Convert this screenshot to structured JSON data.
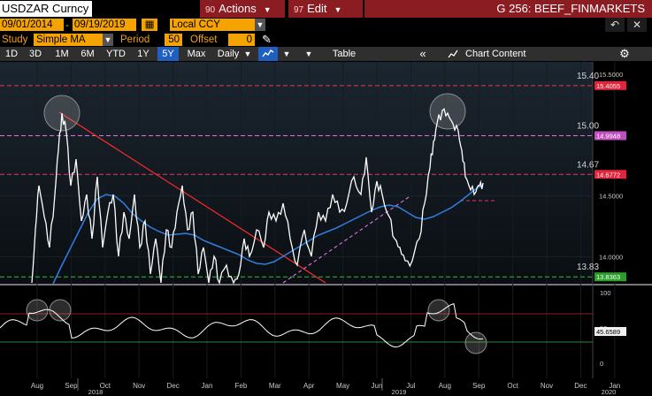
{
  "header": {
    "security": "USDZAR Curncy",
    "actions_num": "90",
    "actions_label": "Actions",
    "edit_num": "97",
    "edit_label": "Edit",
    "page_title": "G 256: BEEF_FINMARKETS"
  },
  "dates": {
    "start": "09/01/2014",
    "end": "09/19/2019",
    "currency": "Local CCY"
  },
  "study": {
    "label": "Study",
    "value": "Simple MA",
    "period_label": "Period",
    "period": "50",
    "offset_label": "Offset",
    "offset": "0"
  },
  "toolbar": {
    "ranges": [
      "1D",
      "3D",
      "1M",
      "6M",
      "YTD",
      "1Y",
      "5Y",
      "Max"
    ],
    "selected_range": "5Y",
    "frequency": "Daily",
    "table_label": "Table",
    "chart_content_label": "Chart Content"
  },
  "icons": [
    "pencil-icon",
    "undo-icon",
    "close-icon",
    "line-chart-icon",
    "chevron-down-icon",
    "collapse-icon",
    "chart-content-icon",
    "gear-icon"
  ],
  "colors": {
    "price_line": "#ffffff",
    "moving_average": "#2f7fe0",
    "trend_line": "#ff2b2b",
    "level_dashed": "#e23a5c",
    "magenta_dashed": "#e070e0",
    "green_dashed": "#3cb83c",
    "accent_orange": "#f4a300",
    "header_red": "#8a1c22"
  },
  "chart_data": {
    "type": "line",
    "series": [
      {
        "name": "USDZAR Curncy",
        "color": "#ffffff"
      },
      {
        "name": "Simple MA",
        "color": "#2f7fe0"
      }
    ],
    "main_panel": {
      "y_ticks": [
        "15.5000",
        "15.0000",
        "14.5000",
        "14.0000"
      ],
      "y_tick_values": [
        15.5,
        15.0,
        14.5,
        14.0
      ],
      "ylim": [
        13.78,
        15.6
      ],
      "levels": [
        {
          "label": "15.40",
          "tag": "15.4055",
          "value": 15.4055,
          "tag_color": "#e2243c"
        },
        {
          "label": "15.00",
          "tag": "14.9948",
          "value": 14.9948,
          "tag_color": "#c050c0"
        },
        {
          "label": "14.67",
          "tag": "14.6772",
          "value": 14.6772,
          "tag_color": "#e2243c"
        },
        {
          "label": "13.83",
          "tag": "13.8363",
          "value": 13.8363,
          "tag_color": "#2aa02a"
        }
      ],
      "current_value_tag": "14.6772"
    },
    "indicator_panel": {
      "y_ticks": [
        "100",
        "50",
        "0"
      ],
      "y_tick_values": [
        100,
        50,
        0
      ],
      "upper_level": 70,
      "lower_level": 30,
      "current_value": "45.6589"
    },
    "x_months": [
      "Aug",
      "Sep",
      "Oct",
      "Nov",
      "Dec",
      "Jan",
      "Feb",
      "Mar",
      "Apr",
      "May",
      "Jun",
      "Jul",
      "Aug",
      "Sep",
      "Oct",
      "Nov",
      "Dec",
      "Jan"
    ],
    "x_years": [
      "2018",
      "2019",
      "2020"
    ]
  }
}
